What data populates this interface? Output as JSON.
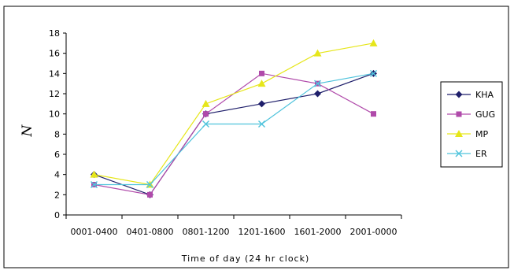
{
  "chart_data": {
    "type": "line",
    "title": "",
    "xlabel": "Time of day (24 hr clock)",
    "ylabel": "N",
    "categories": [
      "0001-0400",
      "0401-0800",
      "0801-1200",
      "1201-1600",
      "1601-2000",
      "2001-0000"
    ],
    "ylim": [
      0,
      18
    ],
    "yticks": [
      0,
      2,
      4,
      6,
      8,
      10,
      12,
      14,
      16,
      18
    ],
    "grid": false,
    "legend": "right",
    "series": [
      {
        "name": "KHA",
        "values": [
          4,
          2,
          10,
          11,
          12,
          14
        ],
        "color": "#1f1f6b",
        "marker": "diamond"
      },
      {
        "name": "GUG",
        "values": [
          3,
          2,
          10,
          14,
          13,
          10
        ],
        "color": "#b04aaa",
        "marker": "square"
      },
      {
        "name": "MP",
        "values": [
          4,
          3,
          11,
          13,
          16,
          17
        ],
        "color": "#e6e61a",
        "marker": "triangle"
      },
      {
        "name": "ER",
        "values": [
          3,
          3,
          9,
          9,
          13,
          14
        ],
        "color": "#4fc3dc",
        "marker": "x"
      }
    ]
  }
}
